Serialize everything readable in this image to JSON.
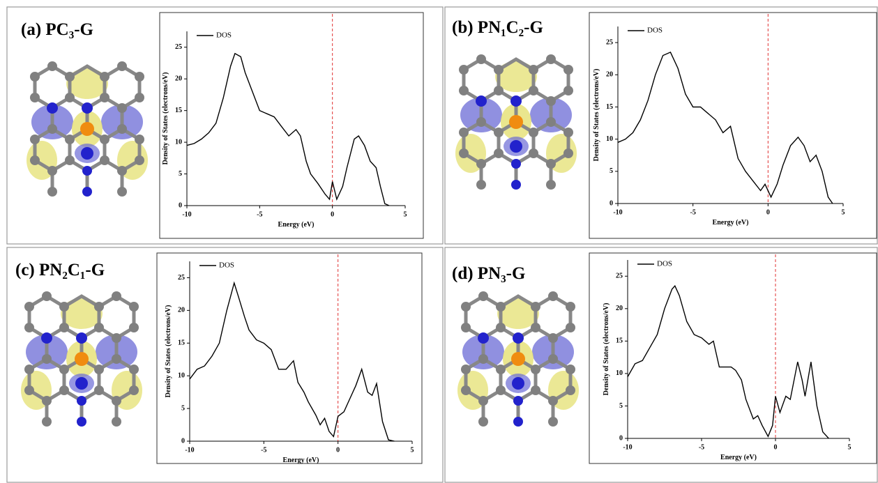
{
  "chart_data": [
    {
      "type": "line",
      "title": "(a) PC₃-G",
      "xlabel": "Energy (eV)",
      "ylabel": "Density of States (electrons/eV)",
      "x": [
        -10,
        -9.5,
        -9,
        -8.5,
        -8,
        -7.5,
        -7,
        -6.7,
        -6.3,
        -6,
        -5.5,
        -5,
        -4.5,
        -4,
        -3.5,
        -3,
        -2.5,
        -2.2,
        -1.8,
        -1.5,
        -1,
        -0.5,
        -0.2,
        0,
        0.3,
        0.7,
        1,
        1.5,
        1.8,
        2.2,
        2.6,
        3,
        3.3,
        3.6,
        3.9
      ],
      "series": [
        {
          "name": "DOS",
          "color": "#000000",
          "values": [
            9.5,
            9.8,
            10.5,
            11.5,
            13,
            17,
            22,
            24,
            23.5,
            21,
            18,
            15,
            14.5,
            14,
            12.5,
            11,
            12,
            11,
            7,
            5,
            3.5,
            1.8,
            1,
            3.8,
            1,
            3,
            6,
            10.5,
            11,
            9.5,
            7,
            6,
            3,
            0.3,
            0
          ]
        }
      ],
      "xlim": [
        -10,
        5
      ],
      "ylim": [
        0,
        27.5
      ],
      "xticks": [
        -10,
        -5,
        0,
        5
      ],
      "yticks": [
        0,
        5,
        10,
        15,
        20,
        25
      ],
      "fermi_level": 0,
      "fermi_color": "#e03030"
    },
    {
      "type": "line",
      "title": "(b) PN₁C₂-G",
      "xlabel": "Energy (eV)",
      "ylabel": "Density of States (electrons/eV)",
      "x": [
        -10,
        -9.5,
        -9,
        -8.5,
        -8,
        -7.5,
        -7,
        -6.5,
        -6,
        -5.5,
        -5,
        -4.5,
        -4,
        -3.5,
        -3,
        -2.5,
        -2,
        -1.5,
        -1,
        -0.5,
        -0.2,
        0.2,
        0.6,
        1,
        1.5,
        2,
        2.4,
        2.8,
        3.2,
        3.6,
        4,
        4.3
      ],
      "series": [
        {
          "name": "DOS",
          "color": "#000000",
          "values": [
            9.5,
            10,
            11,
            13,
            16,
            20,
            23,
            23.5,
            21,
            17,
            15,
            15,
            14,
            13,
            11,
            12,
            7,
            5,
            3.5,
            2,
            3,
            1,
            3,
            6,
            9,
            10.3,
            9,
            6.5,
            7.5,
            5,
            1,
            0
          ]
        }
      ],
      "xlim": [
        -10,
        5
      ],
      "ylim": [
        0,
        27.5
      ],
      "xticks": [
        -10,
        -5,
        0,
        5
      ],
      "yticks": [
        0,
        5,
        10,
        15,
        20,
        25
      ],
      "fermi_level": 0,
      "fermi_color": "#e03030"
    },
    {
      "type": "line",
      "title": "(c) PN₂C₁-G",
      "xlabel": "Energy (eV)",
      "ylabel": "Density of States (electrons/eV)",
      "x": [
        -10,
        -9.5,
        -9,
        -8.5,
        -8,
        -7.5,
        -7,
        -6.7,
        -6.3,
        -6,
        -5.5,
        -5,
        -4.5,
        -4,
        -3.5,
        -3,
        -2.7,
        -2.3,
        -2,
        -1.5,
        -1.2,
        -0.9,
        -0.6,
        -0.3,
        0,
        0.4,
        0.8,
        1.2,
        1.6,
        2,
        2.3,
        2.6,
        3,
        3.4,
        3.8
      ],
      "series": [
        {
          "name": "DOS",
          "color": "#000000",
          "values": [
            9.5,
            11,
            11.5,
            13,
            15,
            20,
            24.2,
            22,
            19,
            17,
            15.5,
            15,
            14,
            11,
            11,
            12.3,
            9,
            7.5,
            6,
            4,
            2.5,
            3.5,
            1.5,
            0.7,
            3.8,
            4.5,
            6.5,
            8.5,
            11,
            7.5,
            7,
            8.8,
            3,
            0.2,
            0
          ]
        }
      ],
      "xlim": [
        -10,
        5
      ],
      "ylim": [
        0,
        27.5
      ],
      "xticks": [
        -10,
        -5,
        0,
        5
      ],
      "yticks": [
        0,
        5,
        10,
        15,
        20,
        25
      ],
      "fermi_level": 0,
      "fermi_color": "#e03030"
    },
    {
      "type": "line",
      "title": "(d) PN₃-G",
      "xlabel": "Energy (eV)",
      "ylabel": "Density of States (electrons/eV)",
      "x": [
        -10,
        -9.5,
        -9,
        -8.5,
        -8,
        -7.5,
        -7,
        -6.8,
        -6.5,
        -6,
        -5.5,
        -5,
        -4.5,
        -4.2,
        -3.8,
        -3.5,
        -3,
        -2.7,
        -2.3,
        -2,
        -1.5,
        -1.2,
        -0.9,
        -0.5,
        -0.2,
        0,
        0.3,
        0.7,
        1,
        1.5,
        1.8,
        2,
        2.4,
        2.8,
        3.2,
        3.6
      ],
      "series": [
        {
          "name": "DOS",
          "color": "#000000",
          "values": [
            9.5,
            11.5,
            12,
            14,
            16,
            20,
            23,
            23.5,
            22,
            18,
            16,
            15.5,
            14.5,
            15,
            11,
            11,
            11,
            10.5,
            9,
            6,
            3,
            3.5,
            2,
            0.3,
            2,
            6.5,
            4,
            6.5,
            6,
            11.8,
            9,
            6.5,
            11.8,
            5,
            1,
            0
          ]
        }
      ],
      "xlim": [
        -10,
        5
      ],
      "ylim": [
        0,
        27.5
      ],
      "xticks": [
        -10,
        -5,
        0,
        5
      ],
      "yticks": [
        0,
        5,
        10,
        15,
        20,
        25
      ],
      "fermi_level": 0,
      "fermi_color": "#e03030"
    }
  ]
}
